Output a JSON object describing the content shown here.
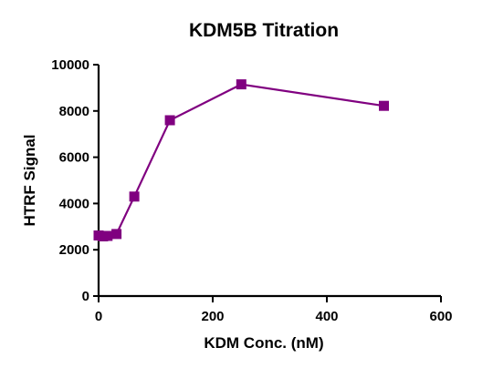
{
  "chart_data": {
    "type": "line",
    "title": "KDM5B Titration",
    "xlabel": "KDM Conc. (nM)",
    "ylabel": "HTRF Signal",
    "xlim": [
      0,
      600
    ],
    "ylim": [
      0,
      10000
    ],
    "x_ticks": [
      "0",
      "200",
      "400",
      "600"
    ],
    "y_ticks": [
      "0",
      "2000",
      "4000",
      "6000",
      "8000",
      "10000"
    ],
    "grid": false,
    "series": [
      {
        "color": "#800080",
        "marker": "square",
        "points": [
          {
            "x": 0,
            "y": 2620
          },
          {
            "x": 7.8,
            "y": 2580
          },
          {
            "x": 15.6,
            "y": 2600
          },
          {
            "x": 31.3,
            "y": 2680
          },
          {
            "x": 62.5,
            "y": 4300
          },
          {
            "x": 125,
            "y": 7600
          },
          {
            "x": 250,
            "y": 9150
          },
          {
            "x": 500,
            "y": 8220
          }
        ]
      }
    ]
  }
}
